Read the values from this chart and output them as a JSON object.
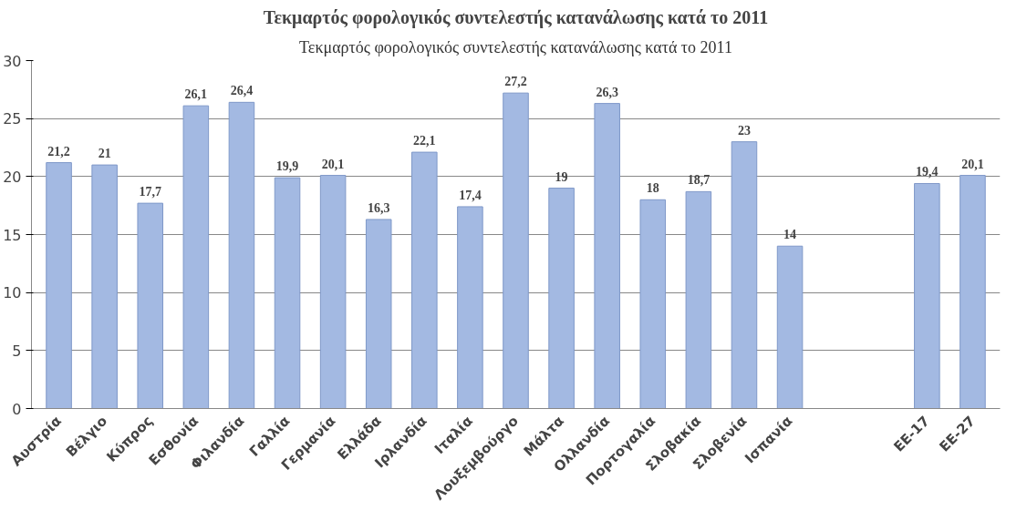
{
  "chart_data": {
    "type": "bar",
    "title": "Τεκμαρτός φορολογικός συντελεστής κατανάλωσης κατά το 2011",
    "annotations": [
      "Τεκμαρτός φορολογικός συντελεστής κατανάλωσης κατά το 2011"
    ],
    "categories": [
      "Αυστρία",
      "Βέλγιο",
      "Κύπρος",
      "Εσθονία",
      "Φιλανδία",
      "Γαλλία",
      "Γερμανία",
      "Ελλάδα",
      "Ιρλανδία",
      "Ιταλία",
      "Λουξεμβούργο",
      "Μάλτα",
      "Ολλανδία",
      "Πορτογαλία",
      "Σλοβακία",
      "Σλοβενία",
      "Ισπανία",
      null,
      null,
      "ΕΕ-17",
      "ΕΕ-27"
    ],
    "values": [
      21.2,
      21,
      17.7,
      26.1,
      26.4,
      19.9,
      20.1,
      16.3,
      22.1,
      17.4,
      27.2,
      19,
      26.3,
      18,
      18.7,
      23,
      14,
      null,
      null,
      19.4,
      20.1
    ],
    "value_labels": [
      "21,2",
      "21",
      "17,7",
      "26,1",
      "26,4",
      "19,9",
      "20,1",
      "16,3",
      "22,1",
      "17,4",
      "27,2",
      "19",
      "26,3",
      "18",
      "18,7",
      "23",
      "14",
      null,
      null,
      "19,4",
      "20,1"
    ],
    "color": "#a3b9e2",
    "ylim": [
      0,
      30
    ],
    "yticks": [
      0,
      5,
      10,
      15,
      20,
      25,
      30
    ],
    "grid": "y"
  }
}
